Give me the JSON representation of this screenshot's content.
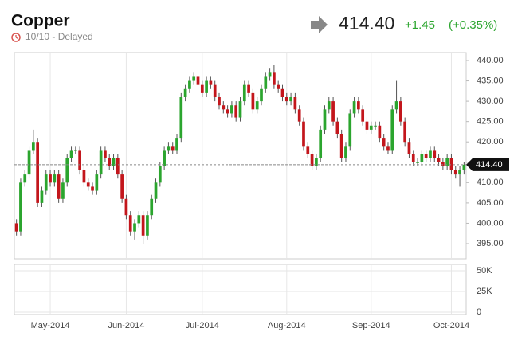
{
  "header": {
    "title": "Copper",
    "status": "10/10 - Delayed",
    "price": "414.40",
    "change": "+1.45",
    "change_pct": "(+0.35%)"
  },
  "chart_data": {
    "type": "candlestick",
    "categories": [
      null,
      null,
      null,
      null,
      null,
      null,
      null,
      null,
      null,
      null,
      null,
      null,
      null,
      null,
      null,
      null,
      null,
      null,
      null,
      null,
      null,
      null,
      null,
      null,
      null,
      null,
      null,
      null,
      null,
      null,
      null,
      null,
      null,
      null,
      null,
      null,
      null,
      null,
      null,
      null,
      null,
      null,
      null,
      null,
      null,
      null,
      null,
      null,
      null,
      null,
      null,
      null,
      null,
      null,
      null,
      null,
      null,
      null,
      null,
      null,
      null,
      null,
      null,
      null,
      null,
      null,
      null,
      null,
      null,
      null,
      null,
      null,
      null,
      null,
      null,
      null,
      null,
      null,
      null,
      null,
      null,
      null,
      null,
      null,
      null,
      null,
      null,
      null,
      null,
      null,
      null,
      null,
      null,
      null,
      null,
      null,
      null,
      null,
      null,
      null,
      null,
      null,
      null,
      null,
      null,
      null,
      null
    ],
    "open": [
      400,
      398,
      410,
      412,
      418,
      420,
      405,
      408,
      412,
      410,
      412,
      406,
      410,
      416,
      418,
      418,
      413,
      410,
      409,
      408,
      412,
      418,
      416,
      414,
      416,
      412,
      406,
      402,
      398,
      400,
      402,
      397,
      402,
      406,
      410,
      414,
      418,
      419,
      418,
      421,
      431,
      433,
      435,
      436,
      434,
      432,
      435,
      434,
      431,
      429,
      428,
      427,
      429,
      426,
      430,
      434,
      432,
      428,
      430,
      433,
      436,
      437,
      434,
      433,
      431,
      430,
      431,
      428,
      425,
      419,
      417,
      414,
      416,
      423,
      428,
      430,
      425,
      422,
      416,
      419,
      427,
      430,
      428,
      425,
      423,
      424,
      424,
      421,
      419,
      418,
      428,
      430,
      425,
      420,
      417,
      415,
      415,
      417,
      416,
      418,
      416,
      415,
      414,
      416,
      413,
      412,
      413
    ],
    "high": [
      401,
      411,
      413,
      419,
      423,
      421,
      409,
      413,
      413,
      413,
      413,
      411,
      417,
      419,
      419,
      419,
      414,
      411,
      410,
      413,
      419,
      419,
      417,
      417,
      417,
      413,
      407,
      403,
      401,
      403,
      403,
      403,
      407,
      411,
      415,
      419,
      420,
      420,
      422,
      432,
      434,
      436,
      437,
      437,
      435,
      436,
      436,
      435,
      432,
      430,
      429,
      430,
      430,
      431,
      435,
      435,
      433,
      431,
      434,
      437,
      438,
      439,
      435,
      434,
      432,
      432,
      432,
      429,
      426,
      420,
      418,
      417,
      424,
      429,
      431,
      431,
      426,
      423,
      420,
      428,
      431,
      431,
      429,
      426,
      425,
      425,
      425,
      422,
      420,
      429,
      435,
      431,
      426,
      421,
      418,
      416,
      418,
      418,
      419,
      419,
      417,
      416,
      417,
      417,
      414,
      414,
      415
    ],
    "low": [
      397,
      397,
      409,
      411,
      417,
      404,
      404,
      407,
      409,
      409,
      405,
      405,
      409,
      415,
      417,
      412,
      409,
      408,
      407,
      407,
      411,
      415,
      413,
      413,
      411,
      405,
      401,
      397,
      396,
      399,
      395,
      396,
      401,
      405,
      409,
      413,
      417,
      417,
      417,
      420,
      430,
      432,
      434,
      433,
      431,
      431,
      433,
      430,
      428,
      427,
      426,
      426,
      425,
      425,
      429,
      431,
      427,
      427,
      429,
      432,
      435,
      433,
      432,
      430,
      429,
      429,
      427,
      424,
      418,
      416,
      413,
      413,
      415,
      422,
      427,
      424,
      421,
      415,
      415,
      418,
      426,
      427,
      424,
      422,
      422,
      423,
      420,
      418,
      417,
      417,
      427,
      424,
      419,
      416,
      414,
      414,
      414,
      415,
      415,
      415,
      414,
      413,
      413,
      412,
      411,
      409,
      412
    ],
    "close": [
      398,
      410,
      412,
      418,
      420,
      405,
      408,
      412,
      410,
      412,
      406,
      410,
      416,
      418,
      418,
      413,
      410,
      409,
      408,
      412,
      418,
      416,
      414,
      416,
      412,
      406,
      402,
      398,
      400,
      402,
      397,
      402,
      406,
      410,
      414,
      418,
      419,
      418,
      421,
      431,
      433,
      435,
      436,
      434,
      432,
      435,
      434,
      431,
      429,
      428,
      427,
      429,
      426,
      430,
      434,
      432,
      428,
      430,
      433,
      436,
      437,
      434,
      433,
      431,
      430,
      431,
      428,
      425,
      419,
      417,
      414,
      416,
      423,
      428,
      430,
      425,
      422,
      416,
      419,
      427,
      430,
      428,
      425,
      423,
      424,
      424,
      421,
      419,
      418,
      428,
      430,
      425,
      420,
      417,
      415,
      415,
      417,
      416,
      418,
      416,
      415,
      414,
      416,
      413,
      412,
      413,
      414.4
    ],
    "up_color": "#2ba52e",
    "down_color": "#c3161c",
    "ylim": [
      395,
      440
    ],
    "yticks": [
      {
        "value": 395,
        "label": "395.00"
      },
      {
        "value": 400,
        "label": "400.00"
      },
      {
        "value": 405,
        "label": "405.00"
      },
      {
        "value": 410,
        "label": "410.00"
      },
      {
        "value": 415,
        "label": "415.00"
      },
      {
        "value": 420,
        "label": "420.00"
      },
      {
        "value": 425,
        "label": "425.00"
      },
      {
        "value": 430,
        "label": "430.00"
      },
      {
        "value": 435,
        "label": "435.00"
      },
      {
        "value": 440,
        "label": "440.00"
      }
    ],
    "last_price": {
      "value": 414.4,
      "label": "414.40"
    },
    "xticks": [
      {
        "value": 8,
        "label": "May-2014"
      },
      {
        "value": 26,
        "label": "Jun-2014"
      },
      {
        "value": 44,
        "label": "Jul-2014"
      },
      {
        "value": 64,
        "label": "Aug-2014"
      },
      {
        "value": 84,
        "label": "Sep-2014"
      },
      {
        "value": 103,
        "label": "Oct-2014"
      }
    ],
    "volume_ylim": [
      0,
      50000
    ],
    "volume_ticks": [
      {
        "value": 50000,
        "label": "50K"
      },
      {
        "value": 25000,
        "label": "25K"
      },
      {
        "value": 0,
        "label": "0"
      }
    ],
    "grid": true
  }
}
